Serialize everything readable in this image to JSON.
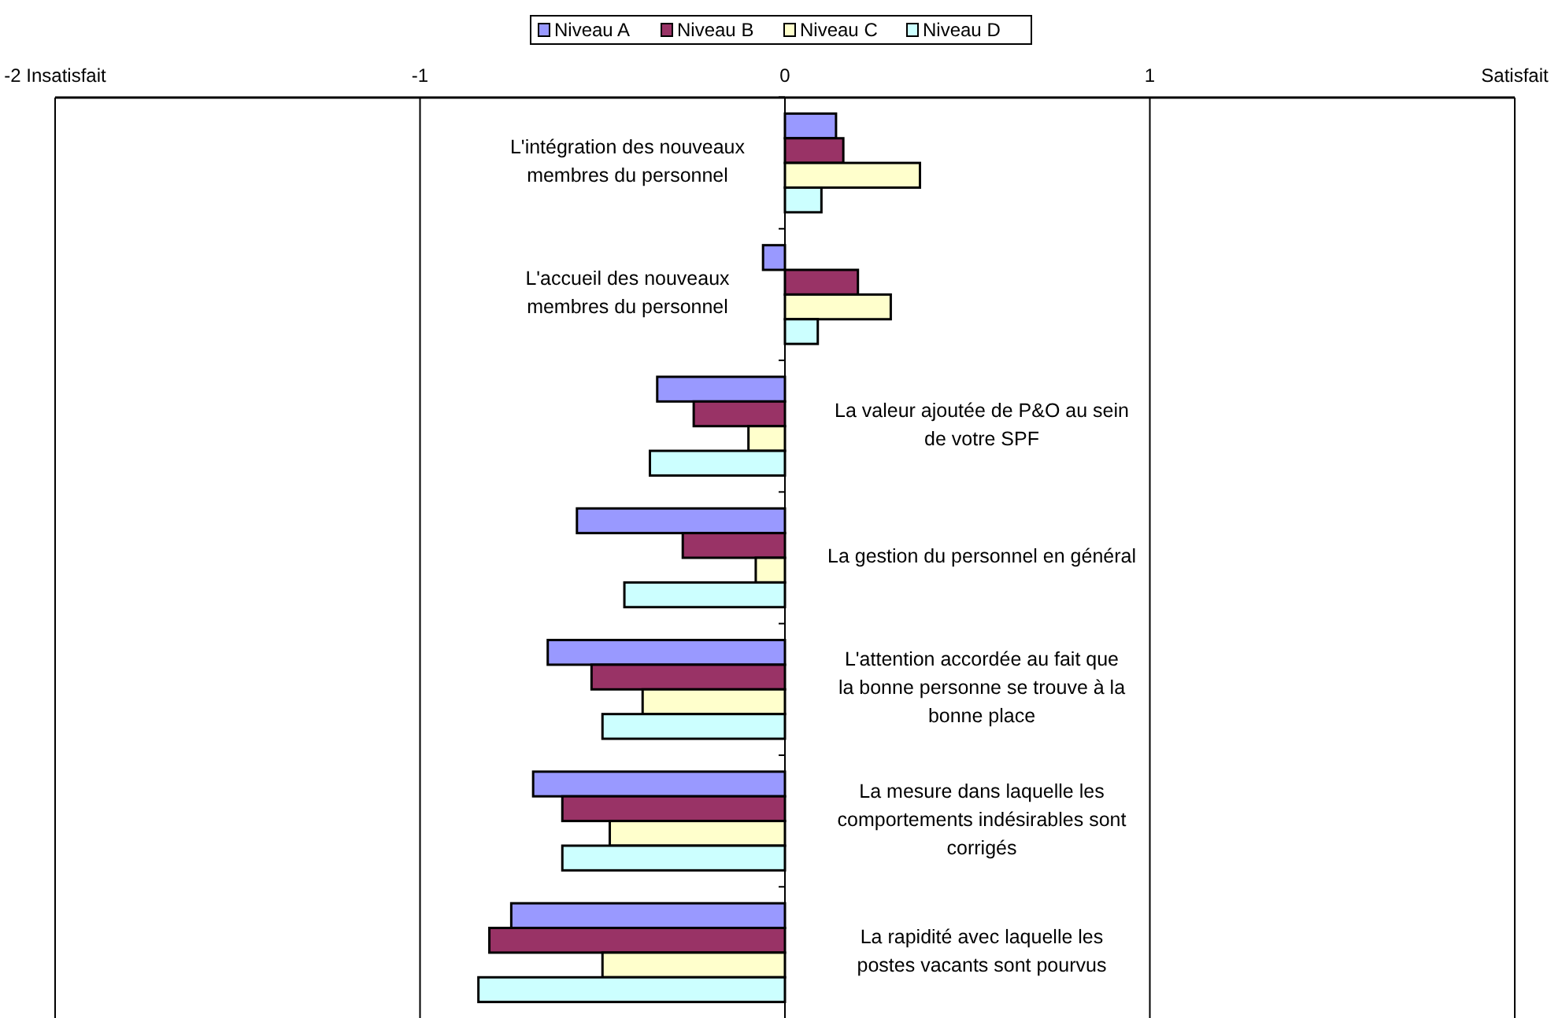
{
  "chart_data": {
    "type": "bar",
    "orientation": "horizontal",
    "legend": "top",
    "grid": "x",
    "categories": [
      "L'intégration des nouveaux membres du personnel",
      "L'accueil des nouveaux membres du personnel",
      "La valeur ajoutée de P&O au sein de votre SPF",
      "La gestion du personnel en général",
      "L'attention accordée au fait que la bonne personne se trouve à la bonne place",
      "La mesure dans laquelle les comportements indésirables sont corrigés",
      "La rapidité avec laquelle les postes vacants sont pourvus"
    ],
    "xlim": [
      -2,
      2
    ],
    "xticks": [
      {
        "value": -2,
        "label": "-2  Insatisfait"
      },
      -1,
      0,
      1,
      {
        "value": 2,
        "label": "Satisfait"
      }
    ],
    "series": [
      {
        "name": "Niveau A",
        "color": "#9999ff",
        "values": [
          0.14,
          -0.06,
          -0.35,
          -0.57,
          -0.65,
          -0.69,
          -0.75
        ]
      },
      {
        "name": "Niveau B",
        "color": "#993366",
        "values": [
          0.16,
          0.2,
          -0.25,
          -0.28,
          -0.53,
          -0.61,
          -0.81
        ]
      },
      {
        "name": "Niveau C",
        "color": "#ffffcc",
        "values": [
          0.37,
          0.29,
          -0.1,
          -0.08,
          -0.39,
          -0.48,
          -0.5
        ]
      },
      {
        "name": "Niveau D",
        "color": "#ccffff",
        "values": [
          0.1,
          0.09,
          -0.37,
          -0.44,
          -0.5,
          -0.61,
          -0.84
        ]
      }
    ]
  }
}
